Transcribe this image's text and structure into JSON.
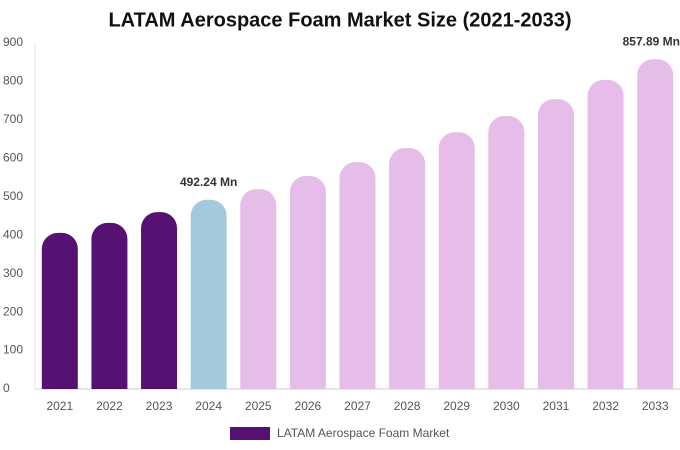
{
  "chart_data": {
    "type": "bar",
    "title": "LATAM Aerospace Foam Market Size (2021-2033)",
    "categories": [
      "2021",
      "2022",
      "2023",
      "2024",
      "2025",
      "2026",
      "2027",
      "2028",
      "2029",
      "2030",
      "2031",
      "2032",
      "2033"
    ],
    "series": [
      {
        "name": "LATAM Aerospace Foam Market",
        "color": "#561273",
        "colors": [
          "#561273",
          "#561273",
          "#561273",
          "#a5c9dc",
          "#e6bce8",
          "#e6bce8",
          "#e6bce8",
          "#e6bce8",
          "#e6bce8",
          "#e6bce8",
          "#e6bce8",
          "#e6bce8",
          "#e6bce8"
        ],
        "values": [
          406,
          432,
          460,
          492.24,
          520,
          554,
          590,
          627,
          668,
          710,
          754,
          804,
          857.89
        ],
        "value_labels": [
          null,
          null,
          null,
          "492.24 Mn",
          null,
          null,
          null,
          null,
          null,
          null,
          null,
          null,
          "857.89 Mn"
        ]
      }
    ],
    "ylim": [
      0,
      900
    ],
    "yticks": [
      0,
      100,
      200,
      300,
      400,
      500,
      600,
      700,
      800,
      900
    ],
    "grid": false
  }
}
